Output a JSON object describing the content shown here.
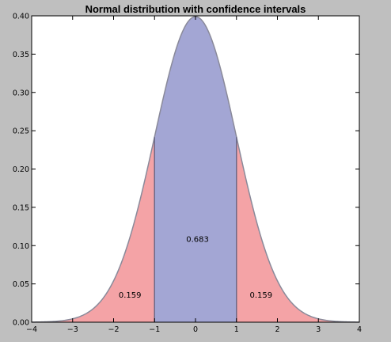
{
  "chart_data": {
    "type": "area",
    "title": "Normal distribution with confidence intervals",
    "xlabel": "",
    "ylabel": "",
    "xlim": [
      -4,
      4
    ],
    "ylim": [
      0,
      0.4
    ],
    "x_ticks": [
      -4,
      -3,
      -2,
      -1,
      0,
      1,
      2,
      3,
      4
    ],
    "x_tick_labels": [
      "−4",
      "−3",
      "−2",
      "−1",
      "0",
      "1",
      "2",
      "3",
      "4"
    ],
    "y_ticks": [
      0.0,
      0.05,
      0.1,
      0.15,
      0.2,
      0.25,
      0.3,
      0.35,
      0.4
    ],
    "y_tick_labels": [
      "0.00",
      "0.05",
      "0.10",
      "0.15",
      "0.20",
      "0.25",
      "0.30",
      "0.35",
      "0.40"
    ],
    "distribution": {
      "name": "normal",
      "mean": 0,
      "sd": 1
    },
    "regions": [
      {
        "x_range": [
          -4,
          -1
        ],
        "value": 0.159,
        "label": "0.159",
        "label_at": [
          -1.6,
          0.032
        ],
        "color": "#f4a3a6"
      },
      {
        "x_range": [
          -1,
          1
        ],
        "value": 0.683,
        "label": "0.683",
        "label_at": [
          0.05,
          0.105
        ],
        "color": "#a3a6d4"
      },
      {
        "x_range": [
          1,
          4
        ],
        "value": 0.159,
        "label": "0.159",
        "label_at": [
          1.6,
          0.032
        ],
        "color": "#f4a3a6"
      }
    ],
    "grid": false,
    "colors": {
      "tails": "#f4a3a6",
      "center": "#a3a6d4",
      "curve": "#8a8a9a",
      "divider": "#6a6a8a"
    }
  }
}
